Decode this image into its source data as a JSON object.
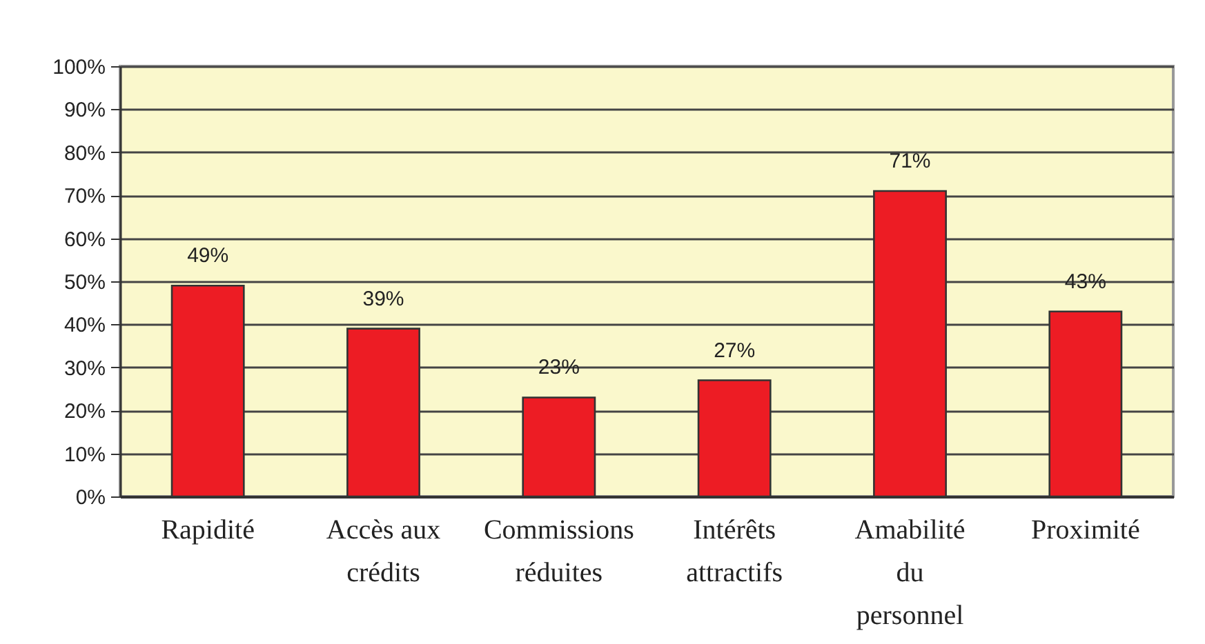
{
  "chart_data": {
    "type": "bar",
    "categories": [
      "Rapidité",
      "Accès aux crédits",
      "Commissions réduites",
      "Intérêts attractifs",
      "Amabilité du personnel",
      "Proximité"
    ],
    "values": [
      49,
      39,
      23,
      27,
      71,
      43
    ],
    "value_labels": [
      "49%",
      "39%",
      "23%",
      "27%",
      "71%",
      "43%"
    ],
    "color": "#ed1c24",
    "ylim": [
      0,
      100
    ],
    "yticks": [
      {
        "value": 0,
        "label": "0%"
      },
      {
        "value": 10,
        "label": "10%"
      },
      {
        "value": 20,
        "label": "20%"
      },
      {
        "value": 30,
        "label": "30%"
      },
      {
        "value": 40,
        "label": "40%"
      },
      {
        "value": 50,
        "label": "50%"
      },
      {
        "value": 60,
        "label": "60%"
      },
      {
        "value": 70,
        "label": "70%"
      },
      {
        "value": 80,
        "label": "80%"
      },
      {
        "value": 90,
        "label": "90%"
      },
      {
        "value": 100,
        "label": "100%"
      }
    ],
    "grid": "y"
  }
}
